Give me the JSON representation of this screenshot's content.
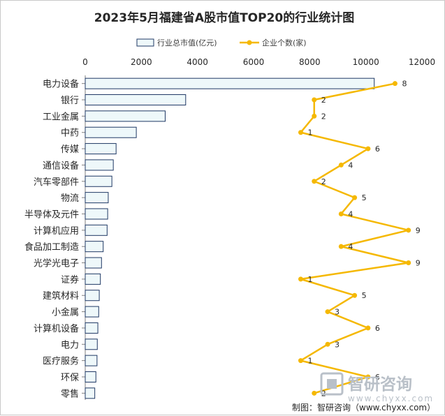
{
  "chart_data": {
    "type": "bar",
    "title": "2023年5月福建省A股市值TOP20的行业统计图",
    "categories": [
      "电力设备",
      "银行",
      "工业金属",
      "中药",
      "传媒",
      "通信设备",
      "汽车零部件",
      "物流",
      "半导体及元件",
      "计算机应用",
      "食品加工制造",
      "光学光电子",
      "证券",
      "建筑材料",
      "小金属",
      "计算机设备",
      "电力",
      "医疗服务",
      "环保",
      "零售"
    ],
    "series": [
      {
        "name": "行业总市值(亿元)",
        "type": "bar",
        "axis": "top",
        "color": "#1f3864",
        "fill": "#eef8fa",
        "values": [
          10300,
          3580,
          2850,
          1820,
          1100,
          1000,
          950,
          820,
          800,
          780,
          640,
          580,
          540,
          500,
          480,
          450,
          430,
          420,
          380,
          340
        ]
      },
      {
        "name": "企业个数(家)",
        "type": "line",
        "color": "#f5b800",
        "values": [
          8,
          2,
          2,
          1,
          6,
          4,
          2,
          5,
          4,
          9,
          4,
          9,
          1,
          5,
          3,
          6,
          3,
          1,
          6,
          2
        ]
      }
    ],
    "xaxis": {
      "range": [
        0,
        12000
      ],
      "ticks": [
        "0",
        "2000",
        "4000",
        "6000",
        "8000",
        "10000",
        "12000"
      ],
      "position": "top"
    },
    "count_range": [
      -15,
      10
    ],
    "legend_position": "top-center"
  },
  "source_note": "制图：智研咨询（www.chyxx.com）",
  "watermark": {
    "brand": "智研咨询",
    "url": "www.chyxx.com"
  }
}
